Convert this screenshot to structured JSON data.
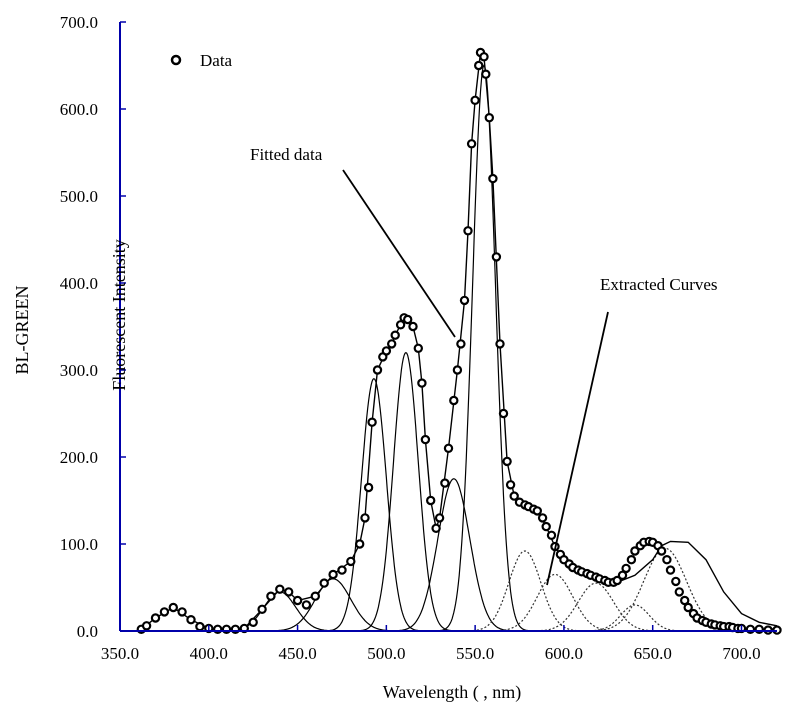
{
  "chart_data": {
    "type": "line",
    "title": "",
    "xlabel": "Wavelength ( , nm)",
    "ylabel": "BL-GREEN",
    "ylabel_overlay": "Fluorescent Intensity",
    "xlim": [
      350,
      720
    ],
    "ylim": [
      0,
      700
    ],
    "x_ticks": [
      350,
      400,
      450,
      500,
      550,
      600,
      650,
      700
    ],
    "x_tick_labels": [
      "350.0",
      "400.0",
      "450.0",
      "500.0",
      "550.0",
      "600.0",
      "650.0",
      "700.0"
    ],
    "y_ticks": [
      0,
      100,
      200,
      300,
      400,
      500,
      600,
      700
    ],
    "y_tick_labels": [
      "0.0",
      "100.0",
      "200.0",
      "300.0",
      "400.0",
      "500.0",
      "600.0",
      "700.0"
    ],
    "legend": {
      "entries": [
        "Data"
      ],
      "placement": "top-left"
    },
    "annotations": [
      "Fitted data",
      "Extracted Curves"
    ],
    "axis_color": "#0000aa",
    "series": [
      {
        "name": "Data",
        "kind": "markers",
        "x": [
          362,
          365,
          370,
          375,
          380,
          385,
          390,
          395,
          400,
          405,
          410,
          415,
          420,
          425,
          430,
          435,
          440,
          445,
          450,
          455,
          460,
          465,
          470,
          475,
          480,
          485,
          488,
          490,
          492,
          495,
          498,
          500,
          503,
          505,
          508,
          510,
          512,
          515,
          518,
          520,
          522,
          525,
          528,
          530,
          533,
          535,
          538,
          540,
          542,
          544,
          546,
          548,
          550,
          552,
          553,
          555,
          556,
          558,
          560,
          562,
          564,
          566,
          568,
          570,
          572,
          575,
          578,
          580,
          583,
          585,
          588,
          590,
          593,
          595,
          598,
          600,
          603,
          605,
          608,
          610,
          613,
          615,
          618,
          620,
          623,
          625,
          628,
          630,
          633,
          635,
          638,
          640,
          643,
          645,
          648,
          650,
          653,
          655,
          658,
          660,
          663,
          665,
          668,
          670,
          673,
          675,
          678,
          680,
          683,
          685,
          688,
          690,
          693,
          695,
          698,
          700,
          705,
          710,
          715,
          720
        ],
        "y": [
          2,
          6,
          15,
          22,
          27,
          22,
          13,
          5,
          3,
          2,
          2,
          2,
          3,
          10,
          25,
          40,
          48,
          45,
          35,
          30,
          40,
          55,
          65,
          70,
          80,
          100,
          130,
          165,
          240,
          300,
          315,
          322,
          330,
          340,
          352,
          360,
          358,
          350,
          325,
          285,
          220,
          150,
          118,
          130,
          170,
          210,
          265,
          300,
          330,
          380,
          460,
          560,
          610,
          650,
          665,
          660,
          640,
          590,
          520,
          430,
          330,
          250,
          195,
          168,
          155,
          148,
          145,
          143,
          140,
          138,
          130,
          120,
          110,
          97,
          88,
          82,
          77,
          73,
          70,
          68,
          66,
          64,
          62,
          60,
          58,
          56,
          56,
          58,
          64,
          72,
          82,
          92,
          98,
          102,
          103,
          102,
          98,
          92,
          82,
          70,
          57,
          45,
          35,
          27,
          20,
          15,
          12,
          10,
          8,
          7,
          6,
          5,
          5,
          4,
          3,
          3,
          2,
          2,
          1,
          1
        ]
      },
      {
        "name": "",
        "kind": "line",
        "x": [
          362,
          370,
          380,
          390,
          400,
          410,
          420,
          430,
          440,
          445,
          450,
          460,
          470,
          480,
          485,
          488,
          492,
          495,
          500,
          503,
          505,
          508,
          510,
          515,
          518,
          520,
          522,
          525,
          528,
          530,
          535,
          540,
          544,
          546,
          548,
          550,
          553,
          555,
          558,
          560,
          564,
          568,
          572,
          578,
          585,
          590,
          595,
          600,
          610,
          620,
          625,
          630,
          640,
          650,
          655,
          660,
          670,
          680,
          690,
          700,
          710,
          720
        ],
        "y": [
          2,
          15,
          27,
          13,
          3,
          2,
          3,
          25,
          48,
          45,
          35,
          40,
          65,
          80,
          100,
          130,
          240,
          300,
          322,
          330,
          340,
          352,
          360,
          350,
          325,
          285,
          220,
          150,
          118,
          130,
          210,
          300,
          380,
          460,
          560,
          610,
          665,
          660,
          590,
          520,
          330,
          195,
          155,
          145,
          138,
          120,
          97,
          82,
          70,
          64,
          58,
          56,
          64,
          82,
          98,
          103,
          102,
          82,
          45,
          20,
          10,
          6
        ]
      },
      {
        "name": "",
        "kind": "gaussian",
        "center": 440,
        "sigma": 9,
        "amp": 45
      },
      {
        "name": "",
        "kind": "gaussian",
        "center": 470,
        "sigma": 10,
        "amp": 60
      },
      {
        "name": "",
        "kind": "gaussian",
        "center": 493,
        "sigma": 7,
        "amp": 290
      },
      {
        "name": "",
        "kind": "gaussian",
        "center": 511,
        "sigma": 7,
        "amp": 320
      },
      {
        "name": "",
        "kind": "gaussian",
        "center": 538,
        "sigma": 9,
        "amp": 175
      },
      {
        "name": "",
        "kind": "gaussian",
        "center": 555,
        "sigma": 6.5,
        "amp": 650
      },
      {
        "name": "",
        "kind": "gaussian",
        "center": 578,
        "sigma": 9,
        "amp": 92
      },
      {
        "name": "",
        "kind": "gaussian",
        "center": 595,
        "sigma": 10,
        "amp": 65
      },
      {
        "name": "",
        "kind": "gaussian",
        "center": 618,
        "sigma": 10,
        "amp": 55
      },
      {
        "name": "",
        "kind": "gaussian",
        "center": 640,
        "sigma": 8,
        "amp": 30
      },
      {
        "name": "",
        "kind": "gaussian",
        "center": 657,
        "sigma": 12,
        "amp": 95
      }
    ]
  }
}
